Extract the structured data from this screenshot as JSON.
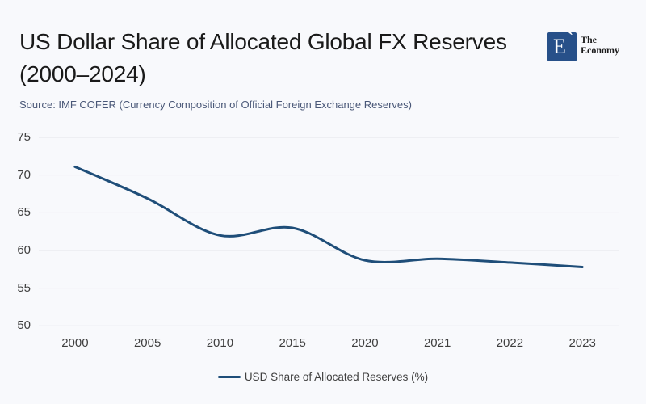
{
  "header": {
    "title_line1": "US Dollar Share of Allocated Global FX Reserves",
    "title_line2": "(2000–2024)",
    "source": "Source: IMF COFER (Currency Composition of Official Foreign Exchange Reserves)",
    "logo": {
      "monogram": "E",
      "accent": "ˋ",
      "name_line1": "The",
      "name_line2": "Economy"
    }
  },
  "colors": {
    "background": "#f8f9fc",
    "line": "#1f4e79",
    "grid": "#e3e5ea",
    "axis_text": "#3f3f3f",
    "title_text": "#1a1a1a",
    "source_text": "#4a5878",
    "logo_box": "#275089",
    "legend_text": "#404040"
  },
  "legend": {
    "label": "USD Share of Allocated Reserves (%)"
  },
  "chart_data": {
    "type": "line",
    "title": "US Dollar Share of Allocated Global FX Reserves (2000–2024)",
    "categories": [
      "2000",
      "2005",
      "2010",
      "2015",
      "2020",
      "2021",
      "2022",
      "2023"
    ],
    "series": [
      {
        "name": "USD Share of Allocated Reserves (%)",
        "values": [
          71.1,
          66.9,
          62.0,
          63.0,
          58.7,
          58.9,
          58.4,
          57.8
        ]
      }
    ],
    "xlabel": "",
    "ylabel": "",
    "y_ticks": [
      75,
      70,
      65,
      60,
      55,
      50
    ],
    "ylim": [
      50,
      75
    ],
    "grid": "horizontal",
    "legend_position": "bottom",
    "smooth": true
  }
}
